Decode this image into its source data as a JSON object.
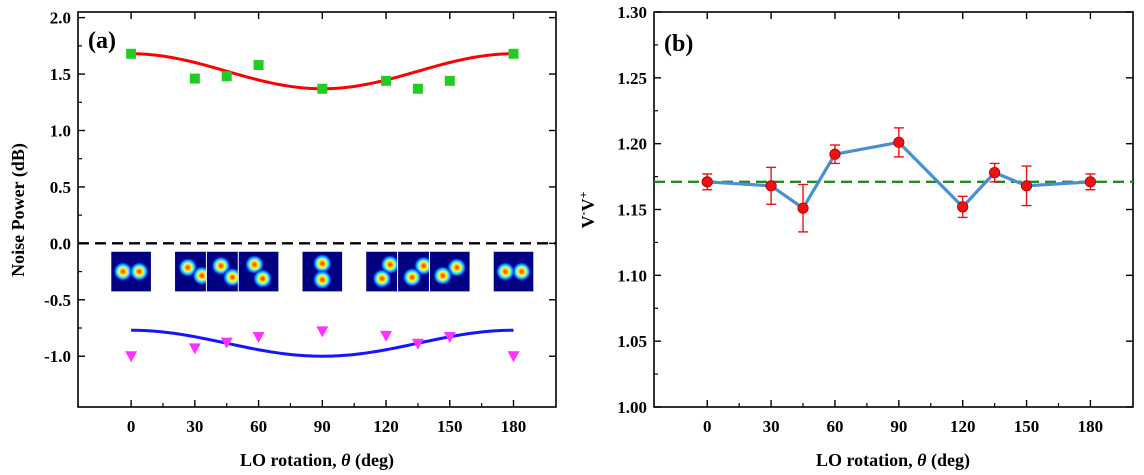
{
  "chart_data": [
    {
      "panel_label": "(a)",
      "type": "scatter",
      "xlabel_prefix": "LO rotation, ",
      "xlabel_symbol": "θ",
      "xlabel_suffix": " (deg)",
      "ylabel": "Noise Power (dB)",
      "xlim": [
        -25,
        200
      ],
      "ylim": [
        -1.45,
        2.05
      ],
      "xticks": [
        0,
        30,
        60,
        90,
        120,
        150,
        180
      ],
      "yticks": [
        -1.0,
        -0.5,
        0.0,
        0.5,
        1.0,
        1.5,
        2.0
      ],
      "ytick_labels": [
        "-1.0",
        "-0.5",
        "0.0",
        "0.5",
        "1.0",
        "1.5",
        "2.0"
      ],
      "reference_line": {
        "y": 0.0,
        "style": "dashed",
        "color": "#000000"
      },
      "series": [
        {
          "marker": "square",
          "color": "#22cc22",
          "x": [
            0,
            30,
            45,
            60,
            90,
            120,
            135,
            150,
            180
          ],
          "y": [
            1.68,
            1.46,
            1.48,
            1.58,
            1.37,
            1.44,
            1.37,
            1.44,
            1.68
          ]
        },
        {
          "marker": "triangle-down",
          "color": "#ff33ff",
          "x": [
            0,
            30,
            45,
            60,
            90,
            120,
            135,
            150,
            180
          ],
          "y": [
            -1.0,
            -0.93,
            -0.88,
            -0.83,
            -0.78,
            -0.82,
            -0.89,
            -0.83,
            -1.0
          ]
        }
      ],
      "fit_curves": [
        {
          "color": "#ff0000",
          "mean": 1.525,
          "amplitude": 0.155,
          "x_range": [
            0,
            180
          ]
        },
        {
          "color": "#1515ff",
          "mean": -0.885,
          "amplitude": 0.115,
          "x_range": [
            0,
            180
          ]
        }
      ],
      "mode_images": {
        "angles": [
          0,
          30,
          45,
          60,
          90,
          120,
          135,
          150,
          180
        ],
        "y_top": -0.07,
        "y_bottom": -0.43
      }
    },
    {
      "panel_label": "(b)",
      "type": "line",
      "xlabel_prefix": "LO rotation, ",
      "xlabel_symbol": "θ",
      "xlabel_suffix": " (deg)",
      "ylabel_base": "V",
      "ylabel_sup1": "-",
      "ylabel_mid": "V",
      "ylabel_sup2": "+",
      "xlim": [
        -25,
        200
      ],
      "ylim": [
        1.0,
        1.3
      ],
      "xticks": [
        0,
        30,
        60,
        90,
        120,
        150,
        180
      ],
      "yticks": [
        1.0,
        1.05,
        1.1,
        1.15,
        1.2,
        1.25,
        1.3
      ],
      "ytick_labels": [
        "1.00",
        "1.05",
        "1.10",
        "1.15",
        "1.20",
        "1.25",
        "1.30"
      ],
      "line_color": "#4a8fd0",
      "marker_color": "#ee1111",
      "reference_line": {
        "y": 1.171,
        "style": "dashed",
        "color": "#228b22"
      },
      "x": [
        0,
        30,
        45,
        60,
        90,
        120,
        135,
        150,
        180
      ],
      "y": [
        1.171,
        1.168,
        1.151,
        1.192,
        1.201,
        1.152,
        1.178,
        1.168,
        1.171
      ],
      "error": [
        0.006,
        0.014,
        0.018,
        0.007,
        0.011,
        0.008,
        0.007,
        0.015,
        0.006
      ]
    }
  ]
}
